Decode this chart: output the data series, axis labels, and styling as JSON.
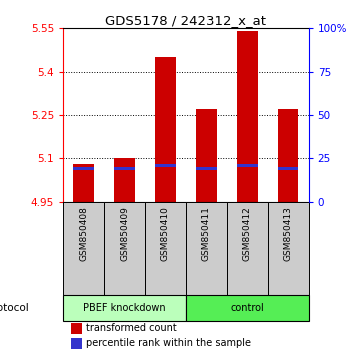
{
  "title": "GDS5178 / 242312_x_at",
  "samples": [
    "GSM850408",
    "GSM850409",
    "GSM850410",
    "GSM850411",
    "GSM850412",
    "GSM850413"
  ],
  "groups": [
    "PBEF knockdown",
    "PBEF knockdown",
    "PBEF knockdown",
    "control",
    "control",
    "control"
  ],
  "transformed_count": [
    5.08,
    5.1,
    5.45,
    5.27,
    5.54,
    5.27
  ],
  "percentile_rank_val": [
    5.065,
    5.065,
    5.075,
    5.065,
    5.075,
    5.065
  ],
  "bar_bottom": 4.95,
  "ylim_left": [
    4.95,
    5.55
  ],
  "ylim_right": [
    0,
    100
  ],
  "yticks_left": [
    4.95,
    5.1,
    5.25,
    5.4,
    5.55
  ],
  "yticks_right": [
    0,
    25,
    50,
    75,
    100
  ],
  "ytick_labels_left": [
    "4.95",
    "5.1",
    "5.25",
    "5.4",
    "5.55"
  ],
  "ytick_labels_right": [
    "0",
    "25",
    "50",
    "75",
    "100%"
  ],
  "red_color": "#cc0000",
  "blue_color": "#3333cc",
  "group1_bg": "#bbffbb",
  "group2_bg": "#55ee55",
  "sample_bg_color": "#cccccc",
  "group_label_1": "PBEF knockdown",
  "group_label_2": "control",
  "legend_red": "transformed count",
  "legend_blue": "percentile rank within the sample",
  "protocol_label": "protocol",
  "bar_width": 0.5,
  "blue_bar_height": 0.012,
  "grid_ticks": [
    5.1,
    5.25,
    5.4
  ]
}
